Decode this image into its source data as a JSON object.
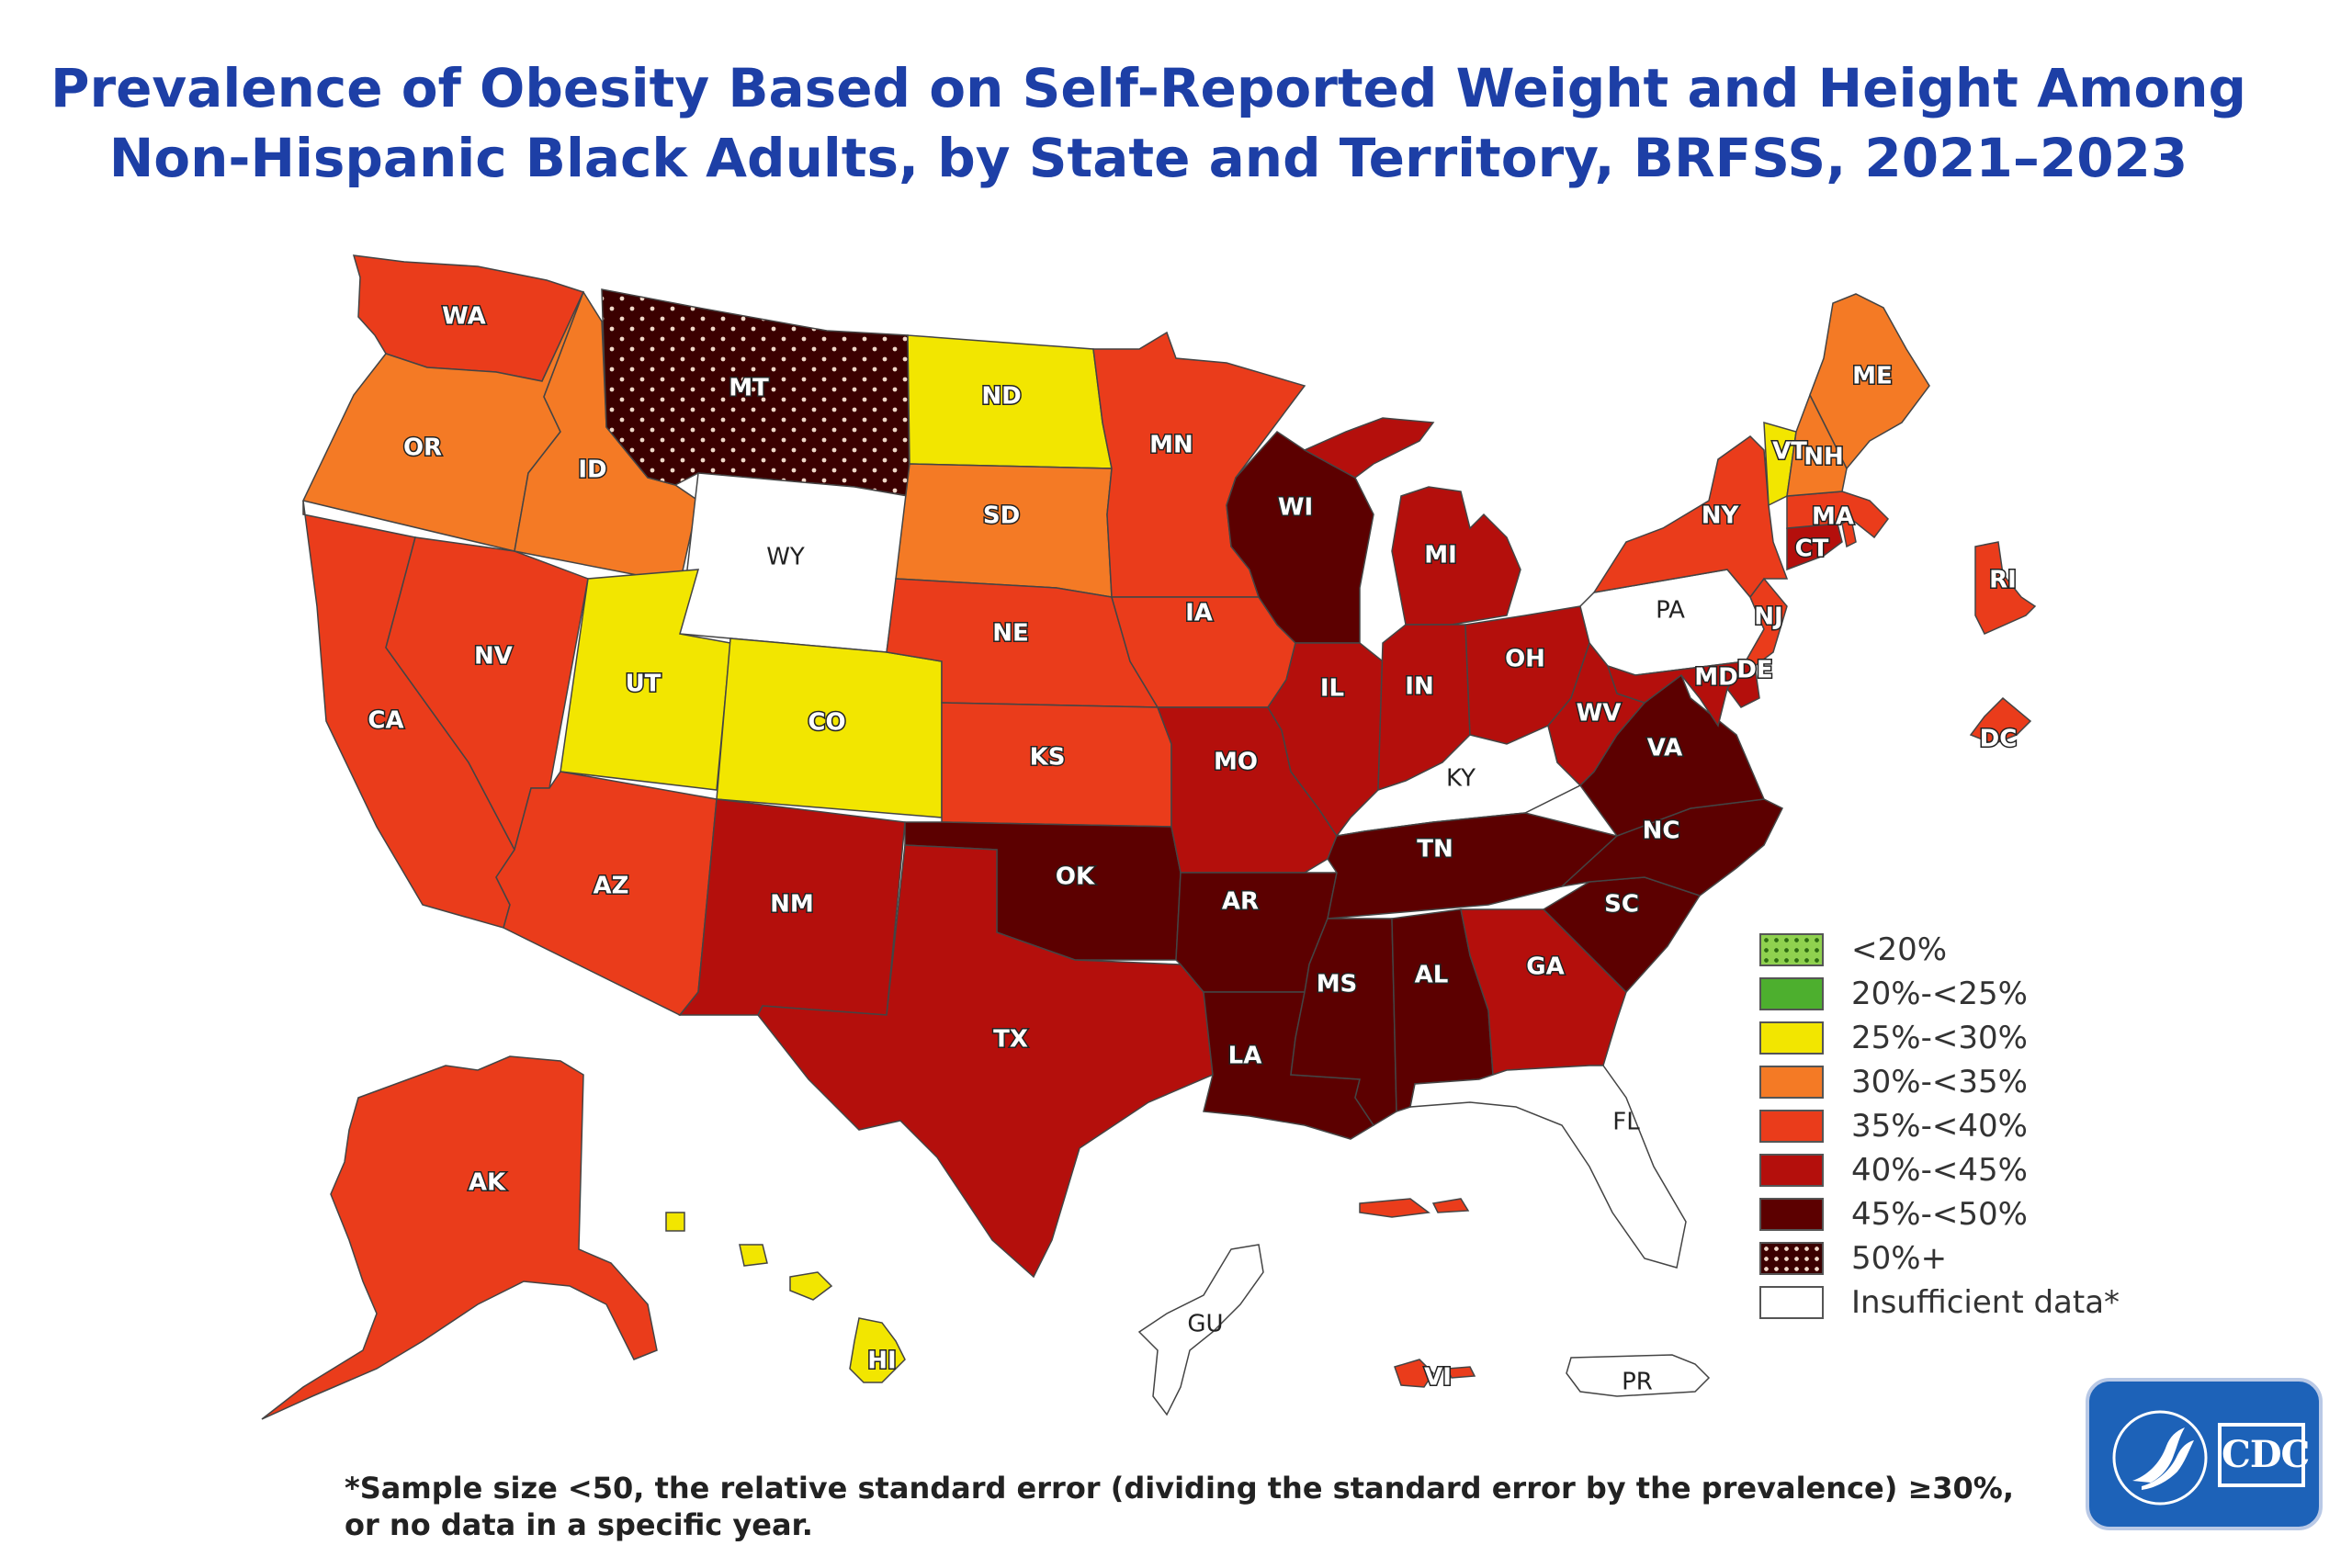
{
  "title_lines": [
    "Prevalence of Obesity Based on Self-Reported Weight and Height Among",
    "Non-Hispanic Black Adults, by State and Territory, BRFSS, 2021–2023"
  ],
  "legend": [
    {
      "label": "<20%",
      "color": "#8fd14f",
      "pattern": "dots"
    },
    {
      "label": "20%-<25%",
      "color": "#4daf2e",
      "pattern": "solid"
    },
    {
      "label": "25%-<30%",
      "color": "#f2e600",
      "pattern": "solid"
    },
    {
      "label": "30%-<35%",
      "color": "#f47a25",
      "pattern": "solid"
    },
    {
      "label": "35%-<40%",
      "color": "#ea3c1b",
      "pattern": "solid"
    },
    {
      "label": "40%-<45%",
      "color": "#b40f0c",
      "pattern": "solid"
    },
    {
      "label": "45%-<50%",
      "color": "#5c0000",
      "pattern": "solid"
    },
    {
      "label": "50%+",
      "color": "#3b0000",
      "pattern": "dots"
    },
    {
      "label": "Insufficient data*",
      "color": "#ffffff",
      "pattern": "solid"
    }
  ],
  "states": {
    "WA": "35%-<40%",
    "OR": "30%-<35%",
    "CA": "35%-<40%",
    "NV": "35%-<40%",
    "ID": "30%-<35%",
    "MT": "50%+",
    "WY": "Insufficient data*",
    "UT": "25%-<30%",
    "CO": "25%-<30%",
    "AZ": "35%-<40%",
    "NM": "40%-<45%",
    "ND": "25%-<30%",
    "SD": "30%-<35%",
    "NE": "35%-<40%",
    "KS": "35%-<40%",
    "OK": "45%-<50%",
    "TX": "40%-<45%",
    "MN": "35%-<40%",
    "IA": "35%-<40%",
    "MO": "40%-<45%",
    "AR": "45%-<50%",
    "LA": "45%-<50%",
    "WI": "45%-<50%",
    "IL": "40%-<45%",
    "MS": "45%-<50%",
    "MI": "40%-<45%",
    "IN": "40%-<45%",
    "KY": "Insufficient data*",
    "TN": "45%-<50%",
    "AL": "45%-<50%",
    "OH": "40%-<45%",
    "WV": "40%-<45%",
    "VA": "45%-<50%",
    "NC": "45%-<50%",
    "SC": "45%-<50%",
    "GA": "40%-<45%",
    "FL": "Insufficient data*",
    "PA": "Insufficient data*",
    "NY": "35%-<40%",
    "NJ": "35%-<40%",
    "DE": "40%-<45%",
    "MD": "40%-<45%",
    "CT": "40%-<45%",
    "RI": "35%-<40%",
    "MA": "35%-<40%",
    "VT": "25%-<30%",
    "NH": "30%-<35%",
    "ME": "30%-<35%",
    "DC": "35%-<40%",
    "AK": "35%-<40%",
    "HI": "25%-<30%",
    "GU": "Insufficient data*",
    "PR": "Insufficient data*",
    "VI": "35%-<40%"
  },
  "footnote_lines": [
    "*Sample size <50, the relative standard error (dividing the standard error by the prevalence) ≥30%,",
    "or no data in a specific year."
  ],
  "logo_text": "CDC"
}
